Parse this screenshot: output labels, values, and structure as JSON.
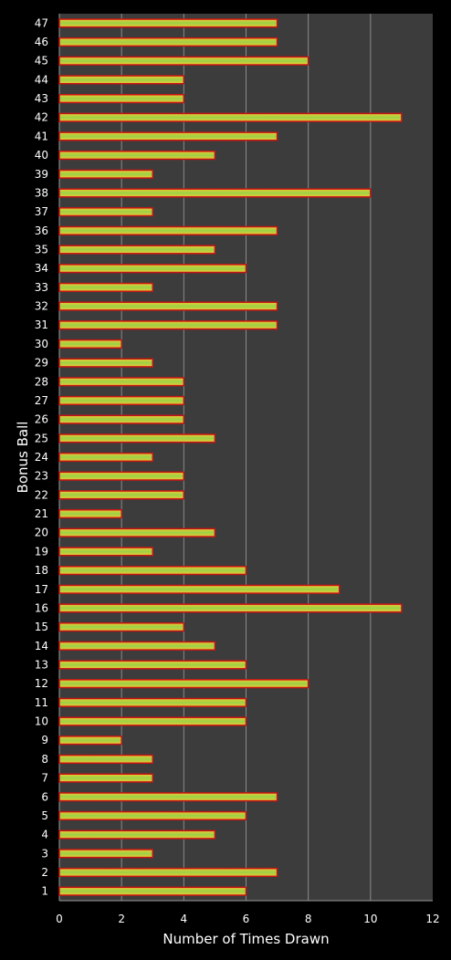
{
  "chart_data": {
    "type": "bar",
    "orientation": "horizontal",
    "title": "",
    "xlabel": "Number of Times Drawn",
    "ylabel": "Bonus Ball",
    "xlim": [
      0,
      12
    ],
    "xticks": [
      0,
      2,
      4,
      6,
      8,
      10,
      12
    ],
    "grid": "vertical",
    "legend": "none",
    "categories": [
      "1",
      "2",
      "3",
      "4",
      "5",
      "6",
      "7",
      "8",
      "9",
      "10",
      "11",
      "12",
      "13",
      "14",
      "15",
      "16",
      "17",
      "18",
      "19",
      "20",
      "21",
      "22",
      "23",
      "24",
      "25",
      "26",
      "27",
      "28",
      "29",
      "30",
      "31",
      "32",
      "33",
      "34",
      "35",
      "36",
      "37",
      "38",
      "39",
      "40",
      "41",
      "42",
      "43",
      "44",
      "45",
      "46",
      "47"
    ],
    "values": [
      6,
      7,
      3,
      5,
      6,
      7,
      3,
      3,
      2,
      6,
      6,
      8,
      6,
      5,
      4,
      11,
      9,
      6,
      3,
      5,
      2,
      4,
      4,
      3,
      5,
      4,
      4,
      4,
      3,
      2,
      7,
      7,
      3,
      6,
      5,
      7,
      3,
      10,
      3,
      5,
      7,
      11,
      4,
      4,
      8,
      7,
      7
    ],
    "colors": {
      "background": "#000000",
      "plot_area": "#3c3c3c",
      "gridline": "#8a8a8a",
      "bar_border": "#c81414",
      "bar_fill_edge": "#f0c832",
      "bar_fill_center": "#9ad246"
    }
  }
}
